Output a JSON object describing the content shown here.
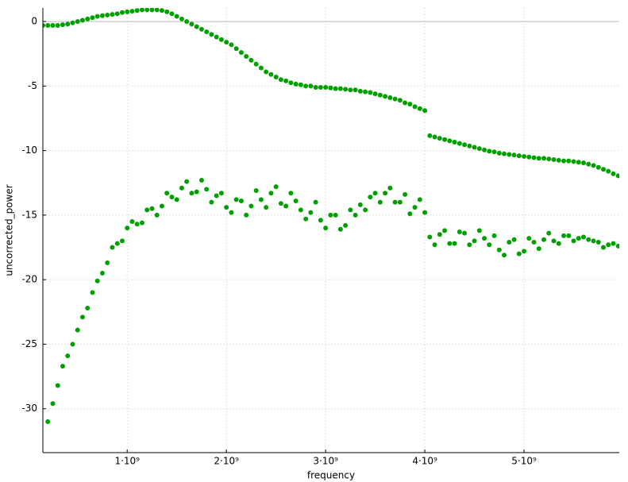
{
  "chart_data": {
    "type": "scatter",
    "x_label": "frequency",
    "y_label": "uncorrected_power",
    "x": [
      150000000.0,
      200000000.0,
      250000000.0,
      300000000.0,
      350000000.0,
      400000000.0,
      450000000.0,
      500000000.0,
      550000000.0,
      600000000.0,
      650000000.0,
      700000000.0,
      750000000.0,
      800000000.0,
      850000000.0,
      900000000.0,
      950000000.0,
      1000000000.0,
      1050000000.0,
      1100000000.0,
      1150000000.0,
      1200000000.0,
      1250000000.0,
      1300000000.0,
      1350000000.0,
      1400000000.0,
      1450000000.0,
      1500000000.0,
      1550000000.0,
      1600000000.0,
      1650000000.0,
      1700000000.0,
      1750000000.0,
      1800000000.0,
      1850000000.0,
      1900000000.0,
      1950000000.0,
      2000000000.0,
      2050000000.0,
      2100000000.0,
      2150000000.0,
      2200000000.0,
      2250000000.0,
      2300000000.0,
      2350000000.0,
      2400000000.0,
      2450000000.0,
      2500000000.0,
      2550000000.0,
      2600000000.0,
      2650000000.0,
      2700000000.0,
      2750000000.0,
      2800000000.0,
      2850000000.0,
      2900000000.0,
      2950000000.0,
      3000000000.0,
      3050000000.0,
      3100000000.0,
      3150000000.0,
      3200000000.0,
      3250000000.0,
      3300000000.0,
      3350000000.0,
      3400000000.0,
      3450000000.0,
      3500000000.0,
      3550000000.0,
      3600000000.0,
      3650000000.0,
      3700000000.0,
      3750000000.0,
      3800000000.0,
      3850000000.0,
      3900000000.0,
      3950000000.0,
      4000000000.0,
      4050000000.0,
      4100000000.0,
      4150000000.0,
      4200000000.0,
      4250000000.0,
      4300000000.0,
      4350000000.0,
      4400000000.0,
      4450000000.0,
      4500000000.0,
      4550000000.0,
      4600000000.0,
      4650000000.0,
      4700000000.0,
      4750000000.0,
      4800000000.0,
      4850000000.0,
      4900000000.0,
      4950000000.0,
      5000000000.0,
      5050000000.0,
      5100000000.0,
      5150000000.0,
      5200000000.0,
      5250000000.0,
      5300000000.0,
      5350000000.0,
      5400000000.0,
      5450000000.0,
      5500000000.0,
      5550000000.0,
      5600000000.0,
      5650000000.0,
      5700000000.0,
      5750000000.0,
      5800000000.0,
      5850000000.0,
      5900000000.0,
      5950000000.0
    ],
    "series": [
      {
        "color": "#00a000",
        "values": [
          -0.3,
          -0.3,
          -0.3,
          -0.3,
          -0.25,
          -0.2,
          -0.1,
          0,
          0.1,
          0.2,
          0.3,
          0.4,
          0.45,
          0.5,
          0.55,
          0.6,
          0.7,
          0.75,
          0.8,
          0.85,
          0.9,
          0.9,
          0.9,
          0.9,
          0.85,
          0.75,
          0.6,
          0.4,
          0.2,
          0,
          -0.2,
          -0.4,
          -0.6,
          -0.8,
          -1.0,
          -1.2,
          -1.4,
          -1.6,
          -1.8,
          -2.1,
          -2.4,
          -2.7,
          -3.0,
          -3.3,
          -3.6,
          -3.9,
          -4.1,
          -4.3,
          -4.5,
          -4.6,
          -4.75,
          -4.85,
          -4.9,
          -5.0,
          -5.0,
          -5.1,
          -5.1,
          -5.1,
          -5.15,
          -5.2,
          -5.2,
          -5.25,
          -5.3,
          -5.3,
          -5.4,
          -5.45,
          -5.5,
          -5.6,
          -5.7,
          -5.8,
          -5.9,
          -6.0,
          -6.1,
          -6.3,
          -6.4,
          -6.6,
          -6.75,
          -6.9,
          -8.85,
          -8.95,
          -9.05,
          -9.15,
          -9.25,
          -9.35,
          -9.45,
          -9.55,
          -9.65,
          -9.75,
          -9.85,
          -9.95,
          -10.05,
          -10.1,
          -10.2,
          -10.25,
          -10.3,
          -10.35,
          -10.4,
          -10.45,
          -10.5,
          -10.55,
          -10.6,
          -10.6,
          -10.65,
          -10.7,
          -10.75,
          -10.8,
          -10.8,
          -10.85,
          -10.9,
          -10.95,
          -11.05,
          -11.15,
          -11.3,
          -11.45,
          -11.6,
          -11.8,
          -11.95
        ]
      },
      {
        "color": "#00a000",
        "values": [
          null,
          -31.0,
          -29.6,
          -28.2,
          -26.7,
          -25.9,
          -25.0,
          -23.9,
          -22.9,
          -22.2,
          -21.0,
          -20.1,
          -19.5,
          -18.7,
          -17.5,
          -17.2,
          -17.0,
          -16.0,
          -15.5,
          -15.7,
          -15.6,
          -14.6,
          -14.5,
          -15.0,
          -14.3,
          -13.3,
          -13.6,
          -13.8,
          -12.9,
          -12.4,
          -13.3,
          -13.2,
          -12.3,
          -13.0,
          -14.0,
          -13.5,
          -13.3,
          -14.4,
          -14.8,
          -13.8,
          -13.9,
          -15.0,
          -14.3,
          -13.1,
          -13.8,
          -14.4,
          -13.3,
          -12.8,
          -14.1,
          -14.3,
          -13.3,
          -13.9,
          -14.6,
          -15.3,
          -14.8,
          -14.0,
          -15.4,
          -16.0,
          -15.0,
          -15.0,
          -16.1,
          -15.8,
          -14.6,
          -15.0,
          -14.2,
          -14.6,
          -13.6,
          -13.3,
          -14.0,
          -13.3,
          -12.9,
          -14.0,
          -14.0,
          -13.4,
          -14.9,
          -14.4,
          -13.8,
          -14.8,
          -16.7,
          -17.3,
          -16.5,
          -16.2,
          -17.2,
          -17.2,
          -16.3,
          -16.4,
          -17.3,
          -17.0,
          -16.2,
          -16.8,
          -17.3,
          -16.6,
          -17.7,
          -18.1,
          -17.1,
          -16.9,
          -18.0,
          -17.8,
          -16.8,
          -17.1,
          -17.6,
          -16.9,
          -16.4,
          -17.0,
          -17.2,
          -16.6,
          -16.6,
          -17.0,
          -16.8,
          -16.7,
          -16.9,
          -17.0,
          -17.1,
          -17.5,
          -17.3,
          -17.2,
          -17.4
        ]
      }
    ],
    "xlim": [
      150000000.0,
      5960000000.0
    ],
    "ylim": [
      -33.4,
      1.05
    ],
    "xticks": [
      {
        "value": 1000000000.0,
        "label": "1·10⁹"
      },
      {
        "value": 2000000000.0,
        "label": "2·10⁹"
      },
      {
        "value": 3000000000.0,
        "label": "3·10⁹"
      },
      {
        "value": 4000000000.0,
        "label": "4·10⁹"
      },
      {
        "value": 5000000000.0,
        "label": "5·10⁹"
      }
    ],
    "yticks": [
      0,
      -5,
      -10,
      -15,
      -20,
      -25,
      -30
    ],
    "grid": true
  }
}
